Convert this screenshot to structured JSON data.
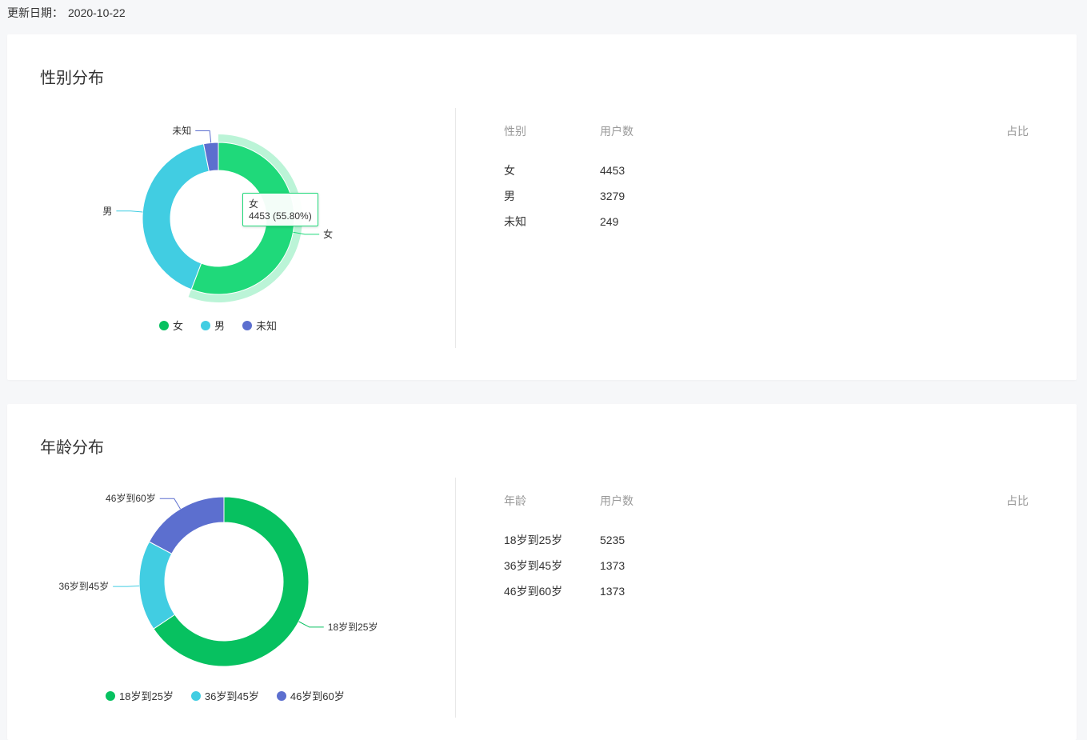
{
  "update_label": "更新日期：",
  "update_date": "2020-10-22",
  "gender": {
    "title": "性别分布",
    "table": {
      "headers": [
        "性别",
        "用户数",
        "占比"
      ],
      "rows": [
        {
          "label": "女",
          "count": "4453"
        },
        {
          "label": "男",
          "count": "3279"
        },
        {
          "label": "未知",
          "count": "249"
        }
      ]
    },
    "tooltip": {
      "name": "女",
      "value": "4453 (55.80%)"
    },
    "legend": [
      "女",
      "男",
      "未知"
    ]
  },
  "age": {
    "title": "年龄分布",
    "table": {
      "headers": [
        "年龄",
        "用户数",
        "占比"
      ],
      "rows": [
        {
          "label": "18岁到25岁",
          "count": "5235"
        },
        {
          "label": "36岁到45岁",
          "count": "1373"
        },
        {
          "label": "46岁到60岁",
          "count": "1373"
        }
      ]
    },
    "legend": [
      "18岁到25岁",
      "36岁到45岁",
      "46岁到60岁"
    ]
  },
  "colors": {
    "female": "#1fd97a",
    "male": "#41cde2",
    "unknown": "#5c6fcf",
    "age_18_25": "#07c160",
    "age_36_45": "#41cde2",
    "age_46_60": "#5c6fcf"
  },
  "chart_data": [
    {
      "type": "pie",
      "title": "性别分布",
      "categories": [
        "女",
        "男",
        "未知"
      ],
      "values": [
        4453,
        3279,
        249
      ],
      "colors": [
        "#1fd97a",
        "#41cde2",
        "#5c6fcf"
      ],
      "legend_position": "bottom"
    },
    {
      "type": "pie",
      "title": "年龄分布",
      "categories": [
        "18岁到25岁",
        "36岁到45岁",
        "46岁到60岁"
      ],
      "values": [
        5235,
        1373,
        1373
      ],
      "colors": [
        "#07c160",
        "#41cde2",
        "#5c6fcf"
      ],
      "legend_position": "bottom"
    }
  ]
}
